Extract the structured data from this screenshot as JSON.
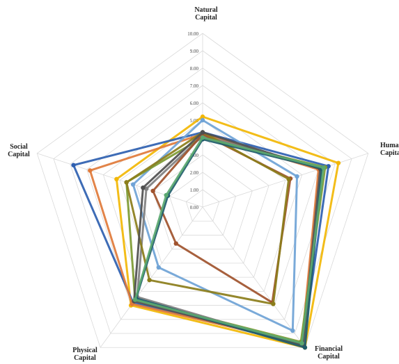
{
  "chart_data": {
    "type": "radar",
    "title": "",
    "axes": [
      {
        "name": "Natural",
        "name2": "Capital"
      },
      {
        "name": "Human",
        "name2": "Capital"
      },
      {
        "name": "Financial",
        "name2": "Capital"
      },
      {
        "name": "Physical",
        "name2": "Capital"
      },
      {
        "name": "Social",
        "name2": "Capital"
      }
    ],
    "range": [
      0,
      10
    ],
    "ticks": [
      "0.00",
      "1.00",
      "2.00",
      "3.00",
      "4.00",
      "5.00",
      "6.00",
      "7.00",
      "8.00",
      "9.00",
      "10.00"
    ],
    "grid": true,
    "legend": "none",
    "series": [
      {
        "color": "#f2b705",
        "values": [
          5.2,
          8.2,
          10.0,
          7.0,
          5.2
        ]
      },
      {
        "color": "#2e5fb0",
        "values": [
          4.3,
          7.6,
          9.8,
          6.8,
          7.8
        ]
      },
      {
        "color": "#e07a3a",
        "values": [
          4.2,
          7.0,
          9.7,
          6.9,
          6.8
        ]
      },
      {
        "color": "#6fa3d6",
        "values": [
          5.0,
          5.7,
          8.8,
          4.3,
          4.2
        ]
      },
      {
        "color": "#7d9a32",
        "values": [
          4.0,
          7.4,
          9.6,
          6.6,
          4.6
        ]
      },
      {
        "color": "#7f7f7f",
        "values": [
          4.1,
          7.2,
          9.9,
          6.4,
          3.4
        ]
      },
      {
        "color": "#a0522d",
        "values": [
          4.2,
          5.3,
          6.8,
          2.6,
          3.0
        ]
      },
      {
        "color": "#8b7d1a",
        "values": [
          4.3,
          5.2,
          6.9,
          5.2,
          4.6
        ]
      },
      {
        "color": "#4f4f4f",
        "values": [
          4.3,
          7.1,
          9.8,
          6.7,
          3.6
        ]
      },
      {
        "color": "#1f5c6b",
        "values": [
          3.9,
          7.2,
          10.0,
          6.5,
          2.1
        ]
      },
      {
        "color": "#5aa870",
        "values": [
          4.0,
          7.3,
          9.7,
          6.6,
          2.2
        ]
      }
    ]
  }
}
